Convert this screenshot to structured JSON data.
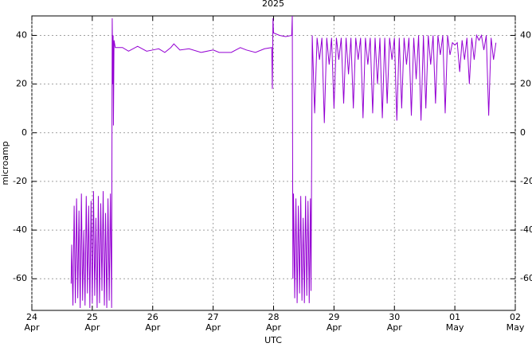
{
  "chart_data": {
    "type": "line",
    "title": "2025",
    "xlabel": "UTC",
    "ylabel": "microamp",
    "xlim": [
      0,
      8
    ],
    "ylim": [
      -73,
      48
    ],
    "xticks": [
      {
        "value": 0,
        "label": "24\nApr"
      },
      {
        "value": 1,
        "label": "25\nApr"
      },
      {
        "value": 2,
        "label": "26\nApr"
      },
      {
        "value": 3,
        "label": "27\nApr"
      },
      {
        "value": 4,
        "label": "28\nApr"
      },
      {
        "value": 5,
        "label": "29\nApr"
      },
      {
        "value": 6,
        "label": "30\nApr"
      },
      {
        "value": 7,
        "label": "01\nMay"
      },
      {
        "value": 8,
        "label": "02\nMay"
      }
    ],
    "yticks": [
      -60,
      -40,
      -20,
      0,
      20,
      40
    ],
    "grid": true,
    "mirror_y_labels": true,
    "series": [
      {
        "color": "#9400d3",
        "x": [
          0.65,
          0.66,
          0.68,
          0.7,
          0.72,
          0.74,
          0.76,
          0.78,
          0.8,
          0.82,
          0.84,
          0.86,
          0.88,
          0.9,
          0.92,
          0.94,
          0.96,
          0.98,
          1.0,
          1.02,
          1.04,
          1.06,
          1.08,
          1.1,
          1.12,
          1.14,
          1.16,
          1.18,
          1.2,
          1.22,
          1.24,
          1.26,
          1.28,
          1.3,
          1.32,
          1.33,
          1.34,
          1.345,
          1.35,
          1.36,
          1.38,
          1.5,
          1.6,
          1.75,
          1.9,
          2.0,
          2.1,
          2.2,
          2.3,
          2.35,
          2.45,
          2.6,
          2.8,
          3.0,
          3.1,
          3.3,
          3.45,
          3.55,
          3.7,
          3.85,
          3.97,
          3.98,
          3.99,
          4.0,
          4.1,
          4.2,
          4.3,
          4.31,
          4.32,
          4.33,
          4.35,
          4.37,
          4.39,
          4.41,
          4.43,
          4.45,
          4.47,
          4.49,
          4.51,
          4.53,
          4.55,
          4.57,
          4.59,
          4.61,
          4.62,
          4.64,
          4.68,
          4.72,
          4.76,
          4.8,
          4.84,
          4.88,
          4.92,
          4.96,
          5.0,
          5.04,
          5.08,
          5.12,
          5.16,
          5.2,
          5.24,
          5.28,
          5.32,
          5.36,
          5.4,
          5.44,
          5.48,
          5.52,
          5.56,
          5.6,
          5.64,
          5.68,
          5.72,
          5.76,
          5.8,
          5.84,
          5.88,
          5.92,
          5.96,
          6.0,
          6.04,
          6.08,
          6.12,
          6.16,
          6.2,
          6.24,
          6.28,
          6.32,
          6.36,
          6.4,
          6.44,
          6.48,
          6.52,
          6.56,
          6.6,
          6.64,
          6.68,
          6.72,
          6.76,
          6.8,
          6.84,
          6.88,
          6.92,
          6.96,
          7.0,
          7.04,
          7.08,
          7.12,
          7.16,
          7.2,
          7.24,
          7.28,
          7.32,
          7.36,
          7.4,
          7.44,
          7.48,
          7.52,
          7.56,
          7.6,
          7.64,
          7.68
        ],
        "values": [
          -62,
          -46,
          -71,
          -30,
          -70,
          -27,
          -68,
          -32,
          -72,
          -25,
          -69,
          -40,
          -71,
          -26,
          -66,
          -30,
          -72,
          -28,
          -70,
          -24,
          -67,
          -35,
          -72,
          -26,
          -70,
          -29,
          -65,
          -24,
          -71,
          -33,
          -72,
          -27,
          -69,
          -25,
          -72,
          47,
          20,
          40,
          3,
          38,
          35,
          35,
          33.5,
          35.5,
          33.5,
          34,
          34.5,
          33,
          35,
          36.5,
          34,
          34.5,
          33,
          34,
          33,
          33,
          35,
          34,
          33,
          34.5,
          35,
          18,
          47,
          41,
          40,
          39.5,
          40,
          48,
          -60,
          -25,
          -68,
          -27,
          -70,
          -30,
          -66,
          -26,
          -69,
          -35,
          -70,
          -26,
          -67,
          -28,
          -70,
          -27,
          -65,
          40,
          8,
          39,
          30,
          39,
          4,
          39,
          28,
          39,
          10,
          39,
          30,
          39,
          12,
          39,
          24,
          39,
          10,
          39,
          30,
          39,
          6,
          39,
          28,
          39,
          8,
          39,
          20,
          39,
          6,
          39,
          12,
          39,
          30,
          39,
          5,
          39,
          10,
          39,
          28,
          39,
          7,
          39,
          22,
          40,
          5,
          40,
          10,
          40,
          28,
          40,
          12,
          40,
          32,
          40,
          8,
          40,
          32,
          37,
          36,
          37,
          25,
          38,
          30,
          39,
          20,
          39,
          30,
          40,
          38,
          40,
          34,
          40,
          7,
          39,
          30,
          37
        ]
      }
    ]
  }
}
